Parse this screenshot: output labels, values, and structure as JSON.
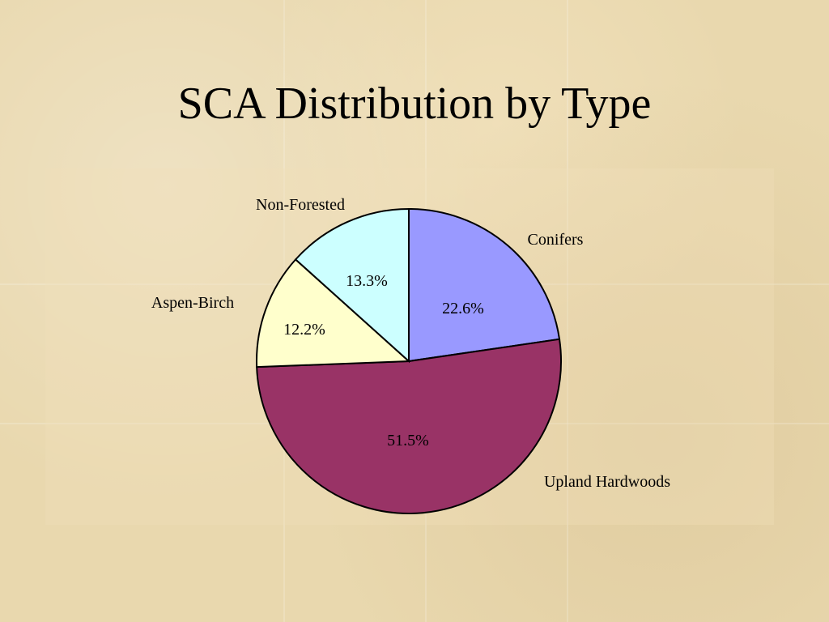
{
  "title": "SCA Distribution by Type",
  "chart_data": {
    "type": "pie",
    "title": "SCA Distribution by Type",
    "slices": [
      {
        "label": "Conifers",
        "value": 22.6,
        "value_label": "22.6%",
        "color": "#9999ff"
      },
      {
        "label": "Upland Hardwoods",
        "value": 51.5,
        "value_label": "51.5%",
        "color": "#993366"
      },
      {
        "label": "Aspen-Birch",
        "value": 12.2,
        "value_label": "12.2%",
        "color": "#ffffcc"
      },
      {
        "label": "Non-Forested",
        "value": 13.3,
        "value_label": "13.3%",
        "color": "#ccffff"
      }
    ],
    "start": "12 o'clock",
    "direction": "clockwise",
    "legend": "none"
  }
}
